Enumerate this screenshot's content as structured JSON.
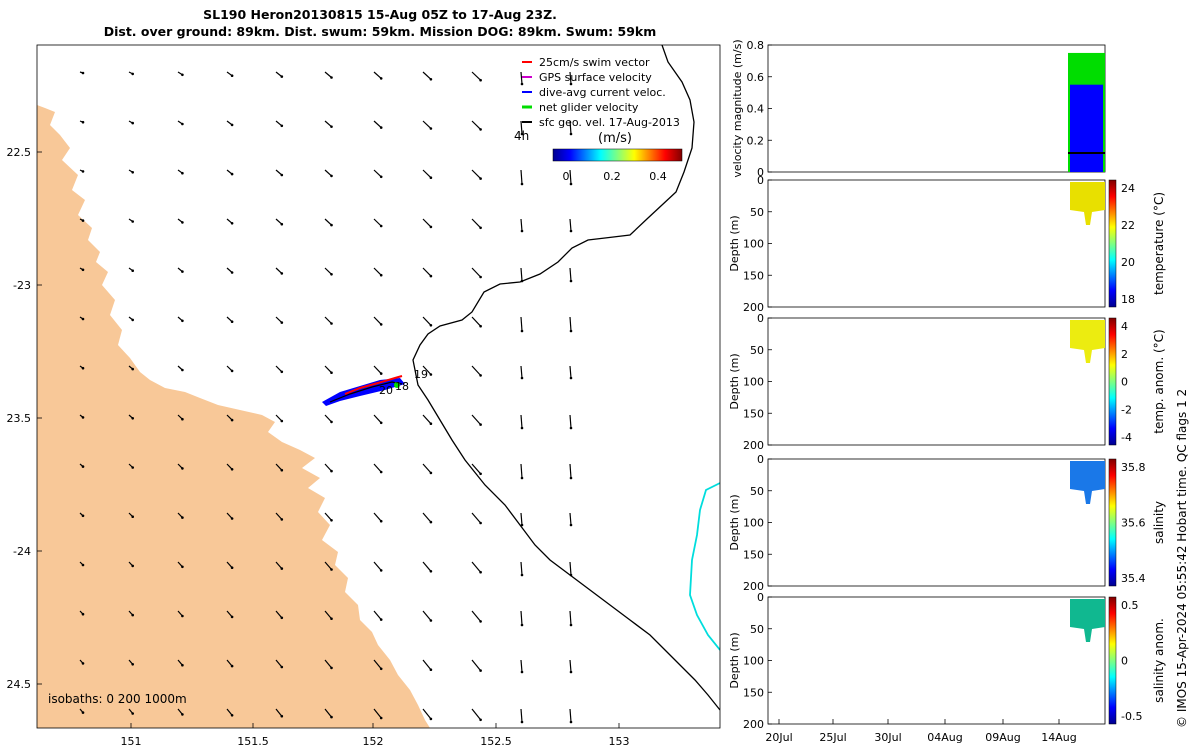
{
  "title": {
    "line1": "SL190 Heron20130815 15-Aug 05Z to 17-Aug 23Z.",
    "line2": "Dist. over ground: 89km. Dist. swum: 59km. Mission DOG: 89km. Swum: 59km"
  },
  "map": {
    "lon_ticks": [
      "151",
      "151.5",
      "152",
      "152.5",
      "153"
    ],
    "lat_ticks": [
      "22.5",
      "-23",
      "23.5",
      "-24",
      "24.5"
    ],
    "isobaths_label": "isobaths: 0   200  1000m",
    "legend": [
      {
        "label": "25cm/s swim vector",
        "color": "#ff0000"
      },
      {
        "label": "GPS surface velocity",
        "color": "#cc00cc"
      },
      {
        "label": "dive-avg current veloc.",
        "color": "#0000ff"
      },
      {
        "label": "net glider velocity",
        "color": "#00dd00"
      },
      {
        "label": "sfc geo. vel. 17-Aug-2013",
        "color": "#000000"
      }
    ],
    "time_label": "4h",
    "colorbar_label": "(m/s)",
    "colorbar_ticks": [
      "0",
      "0.2",
      "0.4"
    ],
    "track_labels": [
      "19",
      "20",
      "18"
    ],
    "land_color": "#f8c898"
  },
  "panels": [
    {
      "ylabel": "velocity magnitude (m/s)",
      "yticks": [
        "0.8",
        "0.6",
        "0.4",
        "0.2",
        "0"
      ]
    },
    {
      "ylabel": "Depth (m)",
      "yticks": [
        "0",
        "50",
        "100",
        "150",
        "200"
      ],
      "cb_label": "temperature (°C)",
      "cb_ticks": [
        "24",
        "22",
        "20",
        "18"
      ]
    },
    {
      "ylabel": "Depth (m)",
      "yticks": [
        "0",
        "50",
        "100",
        "150",
        "200"
      ],
      "cb_label": "temp. anom. (°C)",
      "cb_ticks": [
        "4",
        "2",
        "0",
        "-2",
        "-4"
      ]
    },
    {
      "ylabel": "Depth (m)",
      "yticks": [
        "0",
        "50",
        "100",
        "150",
        "200"
      ],
      "cb_label": "salinity",
      "cb_ticks": [
        "35.8",
        "35.6",
        "35.4"
      ]
    },
    {
      "ylabel": "Depth (m)",
      "yticks": [
        "0",
        "50",
        "100",
        "150",
        "200"
      ],
      "cb_label": "salinity anom.",
      "cb_ticks": [
        "0.5",
        "0",
        "-0.5"
      ]
    }
  ],
  "time_axis": [
    "20Jul",
    "25Jul",
    "30Jul",
    "04Aug",
    "09Aug",
    "14Aug"
  ],
  "footer": "© IMOS 15-Apr-2024 05:55:42 Hobart time. QC flags 1  2",
  "chart_data": {
    "type": "map+timeseries",
    "velocity_magnitude": {
      "ylim": [
        0,
        0.8
      ],
      "peak": 0.8,
      "typical_black": 0.12
    },
    "temperature": {
      "clim": [
        17.5,
        24.2
      ],
      "observed_approx": 23
    },
    "temp_anom": {
      "clim": [
        -4,
        4
      ],
      "observed_approx": 3
    },
    "salinity": {
      "clim": [
        35.3,
        35.9
      ],
      "observed_approx": 35.5
    },
    "salinity_anom": {
      "clim": [
        -0.5,
        0.5
      ],
      "observed_approx": 0.15
    },
    "depth_range": [
      0,
      200
    ]
  }
}
